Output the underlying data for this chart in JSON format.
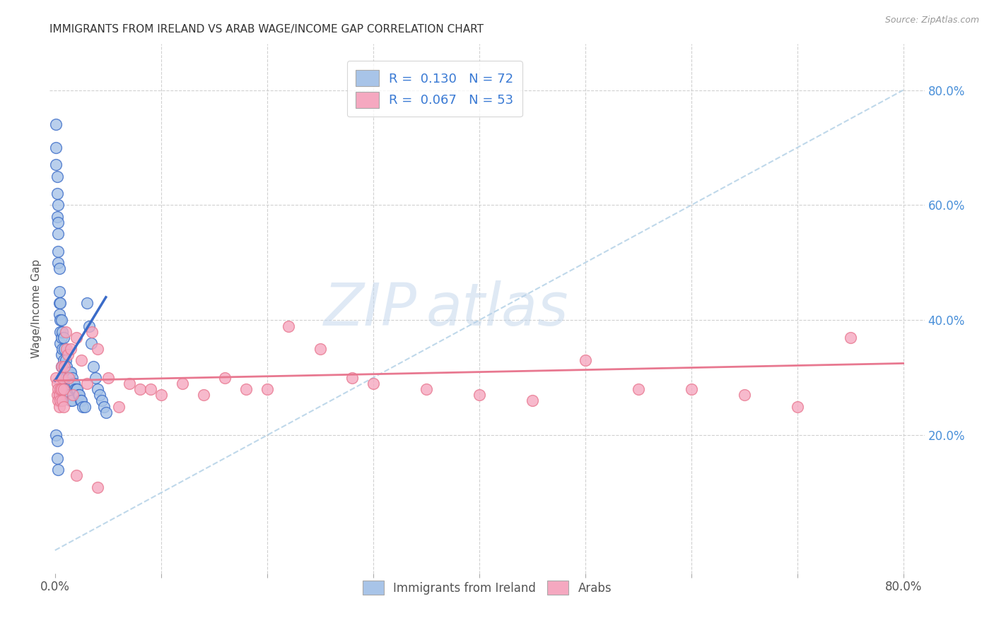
{
  "title": "IMMIGRANTS FROM IRELAND VS ARAB WAGE/INCOME GAP CORRELATION CHART",
  "source": "Source: ZipAtlas.com",
  "ylabel": "Wage/Income Gap",
  "xlim": [
    -0.005,
    0.82
  ],
  "ylim": [
    -0.04,
    0.88
  ],
  "xticks": [
    0.0,
    0.1,
    0.2,
    0.3,
    0.4,
    0.5,
    0.6,
    0.7,
    0.8
  ],
  "xticklabels": [
    "0.0%",
    "",
    "",
    "",
    "",
    "",
    "",
    "",
    "80.0%"
  ],
  "yticks_right": [
    0.2,
    0.4,
    0.6,
    0.8
  ],
  "ytick_right_labels": [
    "20.0%",
    "40.0%",
    "60.0%",
    "80.0%"
  ],
  "color_ireland": "#a8c4e8",
  "color_arab": "#f5a8c0",
  "color_ireland_line": "#3a6bc8",
  "color_arab_line": "#e87890",
  "color_diagonal": "#b8d4e8",
  "watermark_zip": "ZIP",
  "watermark_atlas": "atlas",
  "ireland_line_x0": 0.0,
  "ireland_line_y0": 0.295,
  "ireland_line_x1": 0.048,
  "ireland_line_y1": 0.44,
  "arab_line_x0": 0.0,
  "arab_line_y0": 0.295,
  "arab_line_x1": 0.8,
  "arab_line_y1": 0.325,
  "ireland_x": [
    0.001,
    0.001,
    0.001,
    0.002,
    0.002,
    0.002,
    0.003,
    0.003,
    0.003,
    0.003,
    0.003,
    0.004,
    0.004,
    0.004,
    0.004,
    0.005,
    0.005,
    0.005,
    0.005,
    0.006,
    0.006,
    0.006,
    0.006,
    0.007,
    0.007,
    0.007,
    0.008,
    0.008,
    0.008,
    0.009,
    0.009,
    0.009,
    0.01,
    0.01,
    0.01,
    0.011,
    0.011,
    0.012,
    0.012,
    0.013,
    0.013,
    0.014,
    0.014,
    0.015,
    0.015,
    0.016,
    0.016,
    0.017,
    0.018,
    0.019,
    0.02,
    0.021,
    0.022,
    0.023,
    0.024,
    0.025,
    0.026,
    0.028,
    0.03,
    0.032,
    0.034,
    0.036,
    0.038,
    0.04,
    0.042,
    0.044,
    0.046,
    0.048,
    0.001,
    0.002,
    0.002,
    0.003
  ],
  "ireland_y": [
    0.74,
    0.7,
    0.67,
    0.65,
    0.62,
    0.58,
    0.55,
    0.6,
    0.57,
    0.52,
    0.5,
    0.49,
    0.45,
    0.43,
    0.41,
    0.43,
    0.4,
    0.38,
    0.36,
    0.4,
    0.37,
    0.34,
    0.32,
    0.38,
    0.35,
    0.32,
    0.37,
    0.33,
    0.3,
    0.35,
    0.32,
    0.28,
    0.33,
    0.3,
    0.27,
    0.32,
    0.28,
    0.31,
    0.27,
    0.3,
    0.27,
    0.31,
    0.27,
    0.31,
    0.26,
    0.3,
    0.26,
    0.29,
    0.29,
    0.28,
    0.28,
    0.28,
    0.27,
    0.27,
    0.26,
    0.26,
    0.25,
    0.25,
    0.43,
    0.39,
    0.36,
    0.32,
    0.3,
    0.28,
    0.27,
    0.26,
    0.25,
    0.24,
    0.2,
    0.19,
    0.16,
    0.14
  ],
  "arab_x": [
    0.001,
    0.002,
    0.002,
    0.003,
    0.003,
    0.004,
    0.004,
    0.005,
    0.005,
    0.006,
    0.006,
    0.007,
    0.007,
    0.008,
    0.008,
    0.009,
    0.01,
    0.011,
    0.012,
    0.013,
    0.015,
    0.017,
    0.02,
    0.025,
    0.03,
    0.035,
    0.04,
    0.05,
    0.06,
    0.07,
    0.08,
    0.09,
    0.1,
    0.12,
    0.14,
    0.16,
    0.18,
    0.2,
    0.22,
    0.25,
    0.28,
    0.3,
    0.35,
    0.4,
    0.45,
    0.5,
    0.55,
    0.6,
    0.65,
    0.7,
    0.02,
    0.04,
    0.75
  ],
  "arab_y": [
    0.3,
    0.29,
    0.27,
    0.28,
    0.26,
    0.27,
    0.25,
    0.28,
    0.26,
    0.32,
    0.28,
    0.3,
    0.26,
    0.28,
    0.25,
    0.32,
    0.38,
    0.35,
    0.34,
    0.3,
    0.35,
    0.27,
    0.37,
    0.33,
    0.29,
    0.38,
    0.35,
    0.3,
    0.25,
    0.29,
    0.28,
    0.28,
    0.27,
    0.29,
    0.27,
    0.3,
    0.28,
    0.28,
    0.39,
    0.35,
    0.3,
    0.29,
    0.28,
    0.27,
    0.26,
    0.33,
    0.28,
    0.28,
    0.27,
    0.25,
    0.13,
    0.11,
    0.37
  ]
}
